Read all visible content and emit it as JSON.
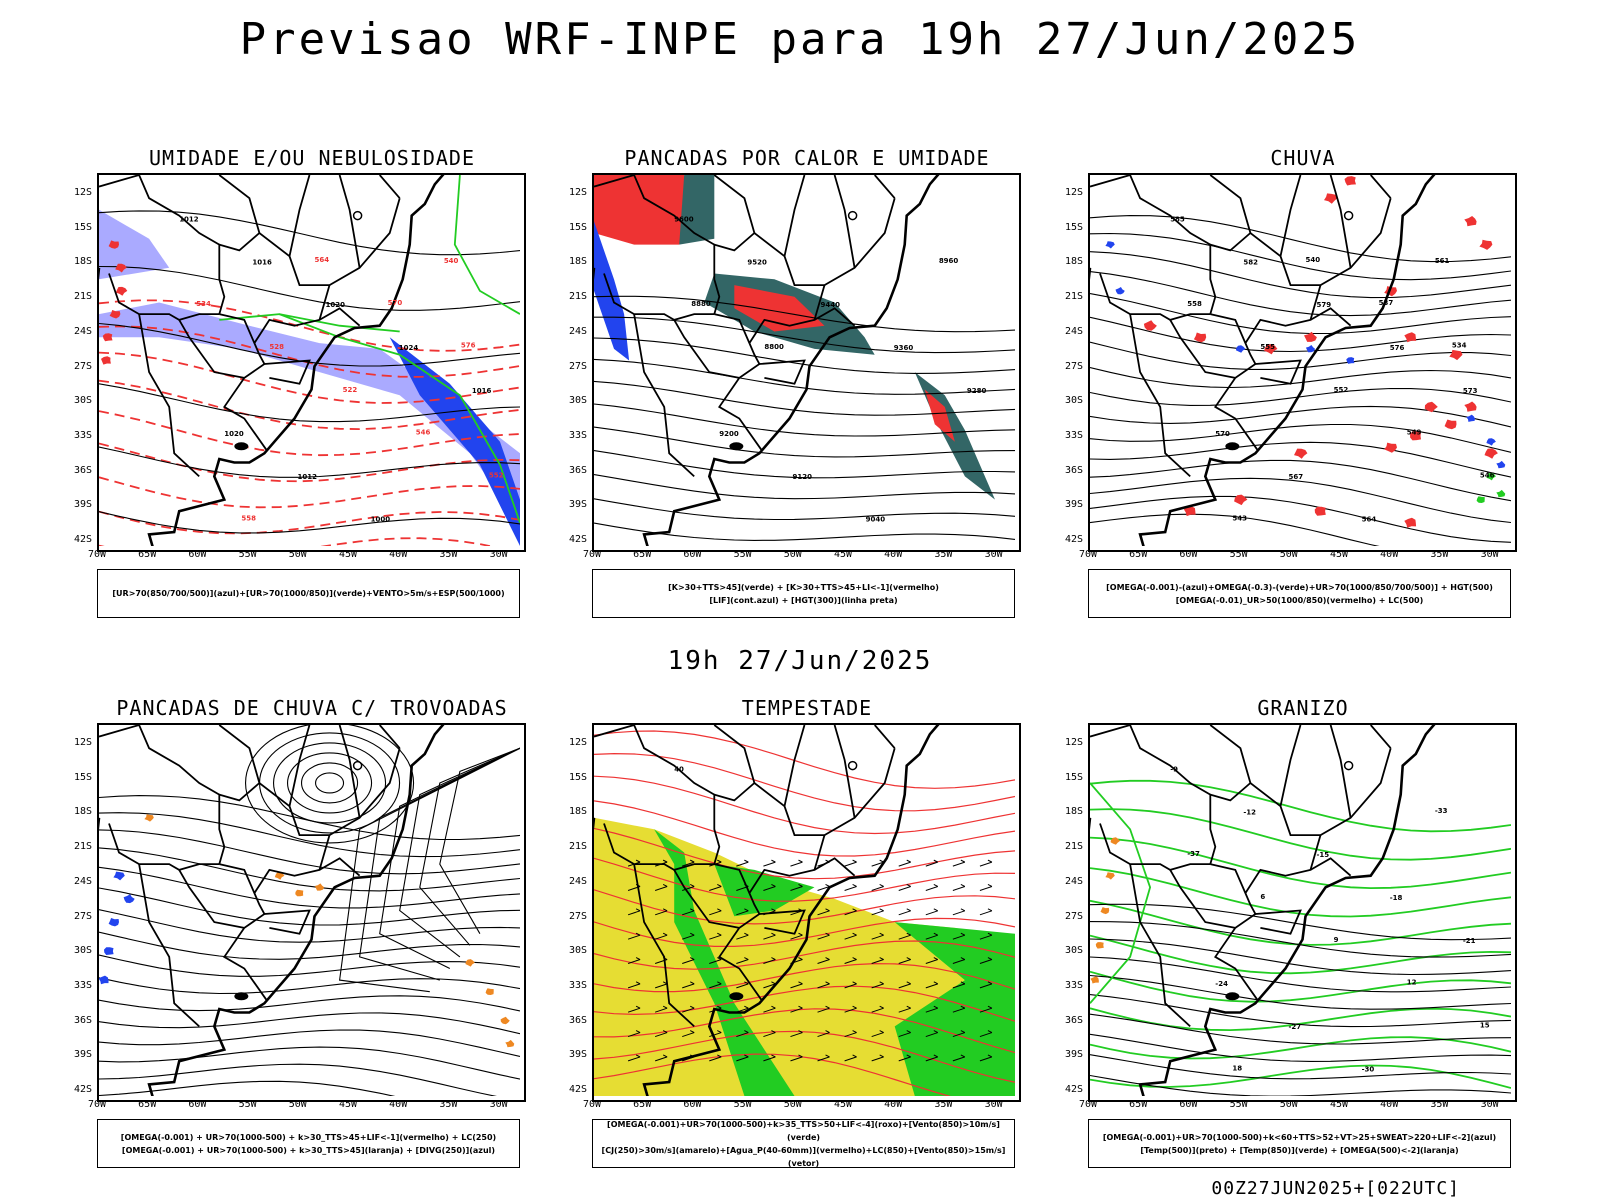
{
  "main_title": "Previsao WRF-INPE  para 19h 27/Jun/2025",
  "sub_title": "19h 27/Jun/2025",
  "footer_stamp": "00Z27JUN2025+[022UTC]",
  "lat_ticks": [
    "12S",
    "15S",
    "18S",
    "21S",
    "24S",
    "27S",
    "30S",
    "33S",
    "36S",
    "39S",
    "42S"
  ],
  "lon_ticks": [
    "70W",
    "65W",
    "60W",
    "55W",
    "50W",
    "45W",
    "40W",
    "35W",
    "30W"
  ],
  "colors": {
    "red": "#ee3333",
    "green": "#22cc22",
    "blue": "#2244ee",
    "lavender": "#aaaaff",
    "teal": "#336666",
    "yellow": "#e6dd33",
    "orange": "#ee8822"
  },
  "panels": [
    {
      "title": "UMIDADE E/OU NEBULOSIDADE",
      "legend": [
        "[UR>70(850/700/500)](azul)+[UR>70(1000/850)](verde)+VENTO>5m/s+ESP(500/1000)"
      ],
      "labels": [
        "1012",
        "1016",
        "1020",
        "1024",
        "1016",
        "1020",
        "1012",
        "1000",
        "540",
        "534",
        "528",
        "522",
        "546",
        "552",
        "558",
        "564",
        "570",
        "576"
      ]
    },
    {
      "title": "PANCADAS POR CALOR E UMIDADE",
      "legend": [
        "[K>30+TTS>45](verde) + [K>30+TTS>45+LI<-1](vermelho)",
        "[LIF](cont.azul) + [HGT(300)](linha preta)"
      ],
      "labels": [
        "9600",
        "9520",
        "9440",
        "9360",
        "9280",
        "9200",
        "9120",
        "9040",
        "8960",
        "8880",
        "8800"
      ]
    },
    {
      "title": "CHUVA",
      "legend": [
        "[OMEGA(-0.001)-(azul)+OMEGA(-0.3)-(verde)+UR>70(1000/850/700/500)] + HGT(500)",
        "[OMEGA(-0.01)_UR>50(1000/850)(vermelho) + LC(500)"
      ],
      "labels": [
        "585",
        "582",
        "579",
        "576",
        "573",
        "570",
        "567",
        "564",
        "561",
        "558",
        "555",
        "552",
        "549",
        "546",
        "543",
        "540",
        "537",
        "534"
      ]
    },
    {
      "title": "PANCADAS DE CHUVA C/ TROVOADAS",
      "legend": [
        "[OMEGA(-0.001) + UR>70(1000-500) + k>30_TTS>45+LIF<-1](vermelho) + LC(250)",
        "[OMEGA(-0.001) + UR>70(1000-500) + k>30_TTS>45](laranja) + [DIVG(250)](azul)"
      ],
      "labels": []
    },
    {
      "title": "TEMPESTADE",
      "legend": [
        "[OMEGA(-0.001)+UR>70(1000-500)+k>35_TTS>50+LIF<-4](roxo)+[Vento(850)>10m/s](verde)",
        "[CJ(250)>30m/s](amarelo)+[Agua_P(40-60mm)](vermelho)+LC(850)+[Vento(850)>15m/s](vetor)"
      ],
      "labels": [
        "40"
      ]
    },
    {
      "title": "GRANIZO",
      "legend": [
        "[OMEGA(-0.001)+UR>70(1000-500)+k<60+TTS>52+VT>25+SWEAT>220+LIF<-2](azul)",
        "[Temp(500)](preto) + [Temp(850)](verde) + [OMEGA(500)<-2](laranja)"
      ],
      "labels": [
        "-9",
        "-12",
        "-15",
        "-18",
        "-21",
        "-24",
        "-27",
        "-30",
        "-33",
        "-37",
        "6",
        "9",
        "12",
        "15",
        "18"
      ]
    }
  ]
}
